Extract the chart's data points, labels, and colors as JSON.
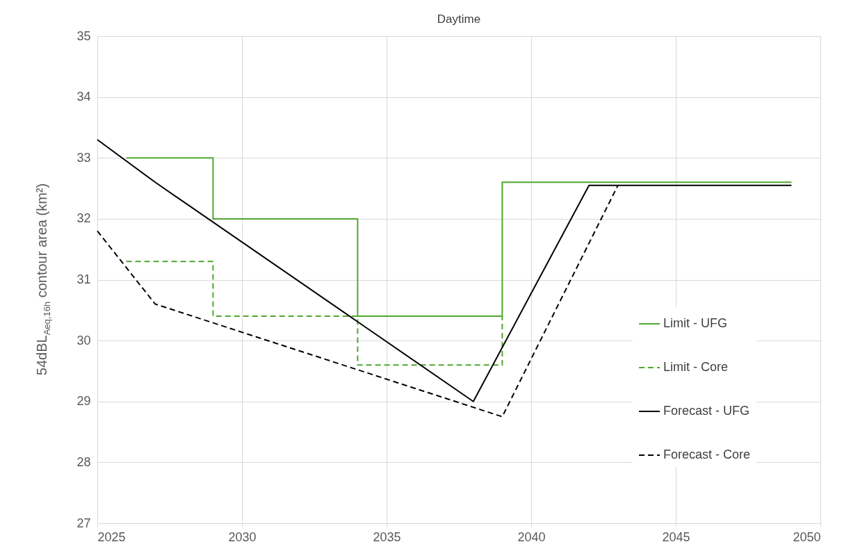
{
  "chart_data": {
    "type": "line",
    "title": "Daytime",
    "ylabel": "54dBL$_{Aeq,16h}$ contour area (km²)",
    "xlim": [
      2025,
      2050
    ],
    "xticks": [
      2025,
      2030,
      2035,
      2040,
      2045,
      2050
    ],
    "ylim": [
      27,
      35
    ],
    "yticks": [
      27,
      28,
      29,
      30,
      31,
      32,
      33,
      34,
      35
    ],
    "grid": true,
    "legend": "right",
    "series": [
      {
        "name": "Limit - UFG",
        "type": "step",
        "color": "#4ea72e",
        "line_style": "solid",
        "x": [
          2026,
          2029,
          2034,
          2039,
          2049
        ],
        "values": [
          33.0,
          32.0,
          30.4,
          32.6,
          32.6
        ]
      },
      {
        "name": "Limit - Core",
        "type": "step",
        "color": "#4ea72e",
        "line_style": "dashed",
        "x": [
          2026,
          2029,
          2034,
          2039
        ],
        "values": [
          31.3,
          30.4,
          29.6,
          30.4
        ]
      },
      {
        "name": "Forecast - UFG",
        "color": "#000000",
        "line_style": "solid",
        "x": [
          2025,
          2027,
          2038,
          2042,
          2049
        ],
        "values": [
          33.3,
          32.6,
          29.0,
          32.55,
          32.55
        ]
      },
      {
        "name": "Forecast - Core",
        "color": "#000000",
        "line_style": "dashed",
        "x": [
          2025,
          2027,
          2039,
          2043
        ],
        "values": [
          31.8,
          30.6,
          28.75,
          32.55
        ]
      }
    ]
  }
}
